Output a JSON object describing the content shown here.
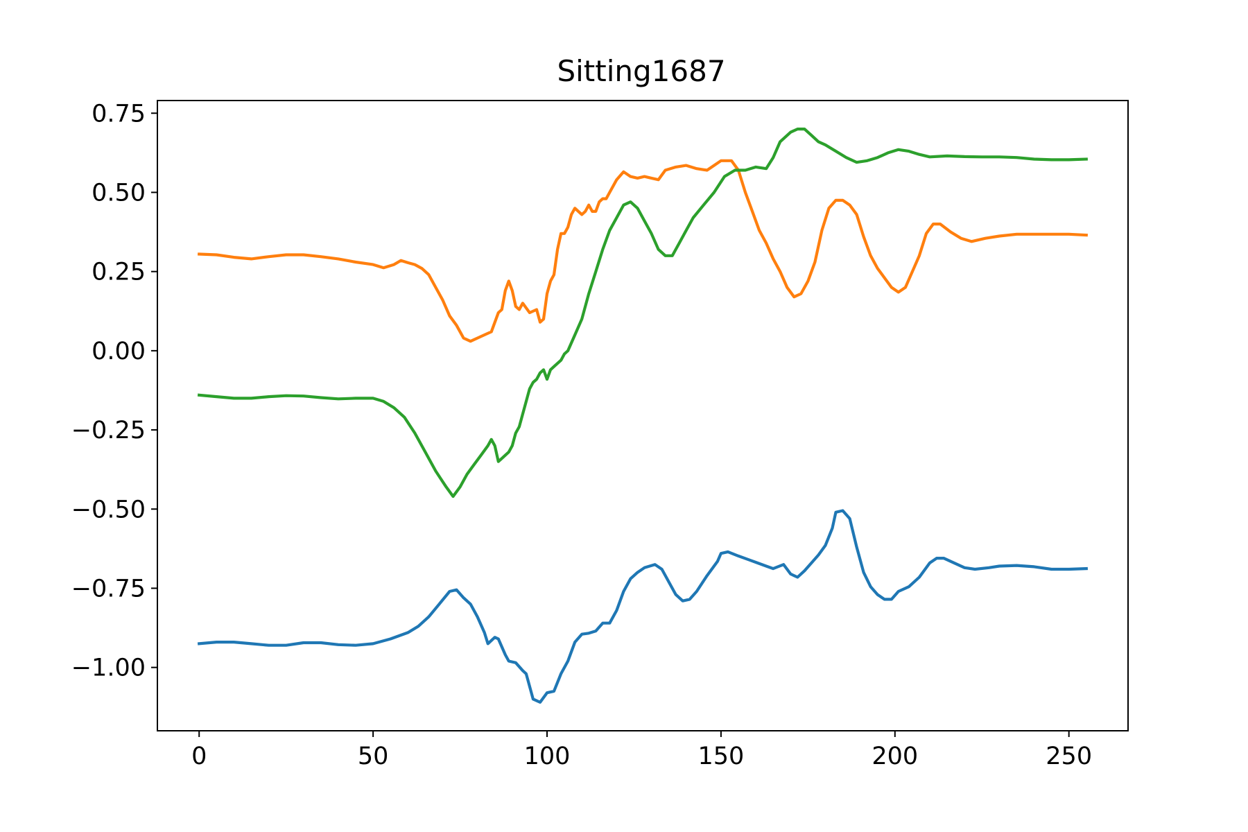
{
  "chart_data": {
    "type": "line",
    "title": "Sitting1687",
    "xlabel": "",
    "ylabel": "",
    "xlim": [
      -12,
      267
    ],
    "ylim": [
      -1.2,
      0.79
    ],
    "xticks": [
      0,
      50,
      100,
      150,
      200,
      250
    ],
    "xtick_labels": [
      "0",
      "50",
      "100",
      "150",
      "200",
      "250"
    ],
    "yticks": [
      0.75,
      0.5,
      0.25,
      0.0,
      -0.25,
      -0.5,
      -0.75,
      -1.0
    ],
    "ytick_labels": [
      "0.75",
      "0.50",
      "0.25",
      "0.00",
      "−0.25",
      "−0.50",
      "−0.75",
      "−1.00"
    ],
    "grid": false,
    "legend": "none",
    "series": [
      {
        "color": "#1f77b4",
        "points": [
          [
            0,
            -0.925
          ],
          [
            5,
            -0.92
          ],
          [
            10,
            -0.92
          ],
          [
            15,
            -0.925
          ],
          [
            20,
            -0.93
          ],
          [
            25,
            -0.93
          ],
          [
            30,
            -0.922
          ],
          [
            35,
            -0.922
          ],
          [
            40,
            -0.928
          ],
          [
            45,
            -0.93
          ],
          [
            50,
            -0.925
          ],
          [
            55,
            -0.91
          ],
          [
            60,
            -0.89
          ],
          [
            63,
            -0.87
          ],
          [
            66,
            -0.84
          ],
          [
            69,
            -0.8
          ],
          [
            72,
            -0.76
          ],
          [
            74,
            -0.755
          ],
          [
            76,
            -0.78
          ],
          [
            78,
            -0.8
          ],
          [
            80,
            -0.84
          ],
          [
            82,
            -0.89
          ],
          [
            83,
            -0.925
          ],
          [
            85,
            -0.905
          ],
          [
            86,
            -0.91
          ],
          [
            88,
            -0.96
          ],
          [
            89,
            -0.98
          ],
          [
            91,
            -0.985
          ],
          [
            93,
            -1.01
          ],
          [
            94,
            -1.02
          ],
          [
            96,
            -1.1
          ],
          [
            98,
            -1.11
          ],
          [
            100,
            -1.08
          ],
          [
            102,
            -1.075
          ],
          [
            104,
            -1.02
          ],
          [
            106,
            -0.98
          ],
          [
            108,
            -0.92
          ],
          [
            110,
            -0.895
          ],
          [
            112,
            -0.892
          ],
          [
            114,
            -0.885
          ],
          [
            116,
            -0.86
          ],
          [
            118,
            -0.86
          ],
          [
            120,
            -0.82
          ],
          [
            122,
            -0.76
          ],
          [
            124,
            -0.72
          ],
          [
            126,
            -0.7
          ],
          [
            128,
            -0.685
          ],
          [
            131,
            -0.675
          ],
          [
            133,
            -0.69
          ],
          [
            135,
            -0.73
          ],
          [
            137,
            -0.77
          ],
          [
            139,
            -0.79
          ],
          [
            141,
            -0.785
          ],
          [
            143,
            -0.76
          ],
          [
            146,
            -0.71
          ],
          [
            149,
            -0.665
          ],
          [
            150,
            -0.64
          ],
          [
            152,
            -0.635
          ],
          [
            155,
            -0.648
          ],
          [
            158,
            -0.66
          ],
          [
            160,
            -0.668
          ],
          [
            163,
            -0.68
          ],
          [
            165,
            -0.688
          ],
          [
            168,
            -0.675
          ],
          [
            170,
            -0.705
          ],
          [
            172,
            -0.715
          ],
          [
            174,
            -0.695
          ],
          [
            176,
            -0.67
          ],
          [
            178,
            -0.645
          ],
          [
            180,
            -0.615
          ],
          [
            182,
            -0.56
          ],
          [
            183,
            -0.51
          ],
          [
            185,
            -0.505
          ],
          [
            187,
            -0.53
          ],
          [
            189,
            -0.62
          ],
          [
            191,
            -0.7
          ],
          [
            193,
            -0.745
          ],
          [
            195,
            -0.77
          ],
          [
            197,
            -0.785
          ],
          [
            199,
            -0.785
          ],
          [
            201,
            -0.76
          ],
          [
            204,
            -0.745
          ],
          [
            207,
            -0.715
          ],
          [
            210,
            -0.67
          ],
          [
            212,
            -0.655
          ],
          [
            214,
            -0.655
          ],
          [
            217,
            -0.67
          ],
          [
            220,
            -0.685
          ],
          [
            223,
            -0.69
          ],
          [
            227,
            -0.685
          ],
          [
            230,
            -0.68
          ],
          [
            235,
            -0.678
          ],
          [
            240,
            -0.682
          ],
          [
            245,
            -0.69
          ],
          [
            250,
            -0.69
          ],
          [
            255,
            -0.688
          ]
        ]
      },
      {
        "color": "#ff7f0e",
        "points": [
          [
            0,
            0.305
          ],
          [
            5,
            0.303
          ],
          [
            10,
            0.295
          ],
          [
            15,
            0.29
          ],
          [
            20,
            0.297
          ],
          [
            25,
            0.303
          ],
          [
            30,
            0.303
          ],
          [
            35,
            0.297
          ],
          [
            40,
            0.29
          ],
          [
            45,
            0.28
          ],
          [
            50,
            0.272
          ],
          [
            53,
            0.262
          ],
          [
            56,
            0.272
          ],
          [
            58,
            0.285
          ],
          [
            60,
            0.278
          ],
          [
            62,
            0.272
          ],
          [
            64,
            0.26
          ],
          [
            66,
            0.24
          ],
          [
            68,
            0.2
          ],
          [
            70,
            0.16
          ],
          [
            72,
            0.11
          ],
          [
            74,
            0.08
          ],
          [
            76,
            0.04
          ],
          [
            78,
            0.03
          ],
          [
            80,
            0.04
          ],
          [
            82,
            0.05
          ],
          [
            84,
            0.06
          ],
          [
            86,
            0.12
          ],
          [
            87,
            0.13
          ],
          [
            88,
            0.19
          ],
          [
            89,
            0.22
          ],
          [
            90,
            0.19
          ],
          [
            91,
            0.14
          ],
          [
            92,
            0.13
          ],
          [
            93,
            0.15
          ],
          [
            95,
            0.12
          ],
          [
            97,
            0.13
          ],
          [
            98,
            0.09
          ],
          [
            99,
            0.1
          ],
          [
            100,
            0.18
          ],
          [
            101,
            0.22
          ],
          [
            102,
            0.24
          ],
          [
            103,
            0.32
          ],
          [
            104,
            0.37
          ],
          [
            105,
            0.37
          ],
          [
            106,
            0.39
          ],
          [
            107,
            0.43
          ],
          [
            108,
            0.45
          ],
          [
            109,
            0.44
          ],
          [
            110,
            0.43
          ],
          [
            111,
            0.44
          ],
          [
            112,
            0.46
          ],
          [
            113,
            0.44
          ],
          [
            114,
            0.44
          ],
          [
            115,
            0.47
          ],
          [
            116,
            0.48
          ],
          [
            117,
            0.48
          ],
          [
            118,
            0.5
          ],
          [
            120,
            0.54
          ],
          [
            122,
            0.565
          ],
          [
            124,
            0.55
          ],
          [
            126,
            0.545
          ],
          [
            128,
            0.55
          ],
          [
            130,
            0.545
          ],
          [
            132,
            0.54
          ],
          [
            134,
            0.57
          ],
          [
            137,
            0.58
          ],
          [
            140,
            0.585
          ],
          [
            143,
            0.575
          ],
          [
            146,
            0.57
          ],
          [
            148,
            0.585
          ],
          [
            150,
            0.6
          ],
          [
            153,
            0.6
          ],
          [
            155,
            0.57
          ],
          [
            157,
            0.5
          ],
          [
            159,
            0.44
          ],
          [
            161,
            0.38
          ],
          [
            163,
            0.34
          ],
          [
            165,
            0.29
          ],
          [
            167,
            0.25
          ],
          [
            169,
            0.2
          ],
          [
            171,
            0.17
          ],
          [
            173,
            0.18
          ],
          [
            175,
            0.22
          ],
          [
            177,
            0.28
          ],
          [
            179,
            0.38
          ],
          [
            181,
            0.45
          ],
          [
            183,
            0.475
          ],
          [
            185,
            0.475
          ],
          [
            187,
            0.46
          ],
          [
            189,
            0.43
          ],
          [
            191,
            0.36
          ],
          [
            193,
            0.3
          ],
          [
            195,
            0.26
          ],
          [
            197,
            0.23
          ],
          [
            199,
            0.2
          ],
          [
            201,
            0.185
          ],
          [
            203,
            0.2
          ],
          [
            205,
            0.25
          ],
          [
            207,
            0.3
          ],
          [
            209,
            0.37
          ],
          [
            211,
            0.4
          ],
          [
            213,
            0.4
          ],
          [
            216,
            0.375
          ],
          [
            219,
            0.355
          ],
          [
            222,
            0.345
          ],
          [
            226,
            0.355
          ],
          [
            230,
            0.362
          ],
          [
            235,
            0.368
          ],
          [
            240,
            0.368
          ],
          [
            245,
            0.368
          ],
          [
            250,
            0.368
          ],
          [
            255,
            0.365
          ]
        ]
      },
      {
        "color": "#2ca02c",
        "points": [
          [
            0,
            -0.14
          ],
          [
            5,
            -0.145
          ],
          [
            10,
            -0.15
          ],
          [
            15,
            -0.15
          ],
          [
            20,
            -0.145
          ],
          [
            25,
            -0.142
          ],
          [
            30,
            -0.143
          ],
          [
            35,
            -0.148
          ],
          [
            40,
            -0.152
          ],
          [
            45,
            -0.15
          ],
          [
            50,
            -0.15
          ],
          [
            53,
            -0.16
          ],
          [
            56,
            -0.18
          ],
          [
            59,
            -0.21
          ],
          [
            62,
            -0.26
          ],
          [
            65,
            -0.32
          ],
          [
            68,
            -0.38
          ],
          [
            71,
            -0.43
          ],
          [
            73,
            -0.46
          ],
          [
            75,
            -0.43
          ],
          [
            77,
            -0.39
          ],
          [
            79,
            -0.36
          ],
          [
            81,
            -0.33
          ],
          [
            83,
            -0.3
          ],
          [
            84,
            -0.28
          ],
          [
            85,
            -0.3
          ],
          [
            86,
            -0.35
          ],
          [
            87,
            -0.34
          ],
          [
            88,
            -0.33
          ],
          [
            89,
            -0.32
          ],
          [
            90,
            -0.3
          ],
          [
            91,
            -0.26
          ],
          [
            92,
            -0.24
          ],
          [
            93,
            -0.2
          ],
          [
            94,
            -0.16
          ],
          [
            95,
            -0.12
          ],
          [
            96,
            -0.1
          ],
          [
            97,
            -0.09
          ],
          [
            98,
            -0.07
          ],
          [
            99,
            -0.06
          ],
          [
            100,
            -0.09
          ],
          [
            101,
            -0.06
          ],
          [
            102,
            -0.05
          ],
          [
            103,
            -0.04
          ],
          [
            104,
            -0.03
          ],
          [
            105,
            -0.01
          ],
          [
            106,
            0.0
          ],
          [
            108,
            0.05
          ],
          [
            110,
            0.1
          ],
          [
            112,
            0.18
          ],
          [
            114,
            0.25
          ],
          [
            116,
            0.32
          ],
          [
            118,
            0.38
          ],
          [
            120,
            0.42
          ],
          [
            122,
            0.46
          ],
          [
            124,
            0.47
          ],
          [
            126,
            0.45
          ],
          [
            128,
            0.41
          ],
          [
            130,
            0.37
          ],
          [
            132,
            0.32
          ],
          [
            134,
            0.3
          ],
          [
            136,
            0.3
          ],
          [
            138,
            0.34
          ],
          [
            140,
            0.38
          ],
          [
            142,
            0.42
          ],
          [
            145,
            0.46
          ],
          [
            148,
            0.5
          ],
          [
            151,
            0.55
          ],
          [
            154,
            0.57
          ],
          [
            157,
            0.57
          ],
          [
            160,
            0.58
          ],
          [
            163,
            0.575
          ],
          [
            165,
            0.61
          ],
          [
            167,
            0.66
          ],
          [
            170,
            0.69
          ],
          [
            172,
            0.7
          ],
          [
            174,
            0.7
          ],
          [
            176,
            0.68
          ],
          [
            178,
            0.66
          ],
          [
            180,
            0.65
          ],
          [
            183,
            0.63
          ],
          [
            186,
            0.61
          ],
          [
            189,
            0.595
          ],
          [
            192,
            0.6
          ],
          [
            195,
            0.61
          ],
          [
            198,
            0.625
          ],
          [
            201,
            0.635
          ],
          [
            204,
            0.63
          ],
          [
            207,
            0.62
          ],
          [
            210,
            0.612
          ],
          [
            215,
            0.615
          ],
          [
            220,
            0.613
          ],
          [
            225,
            0.612
          ],
          [
            230,
            0.612
          ],
          [
            235,
            0.61
          ],
          [
            240,
            0.605
          ],
          [
            245,
            0.603
          ],
          [
            250,
            0.603
          ],
          [
            255,
            0.605
          ]
        ]
      }
    ]
  }
}
